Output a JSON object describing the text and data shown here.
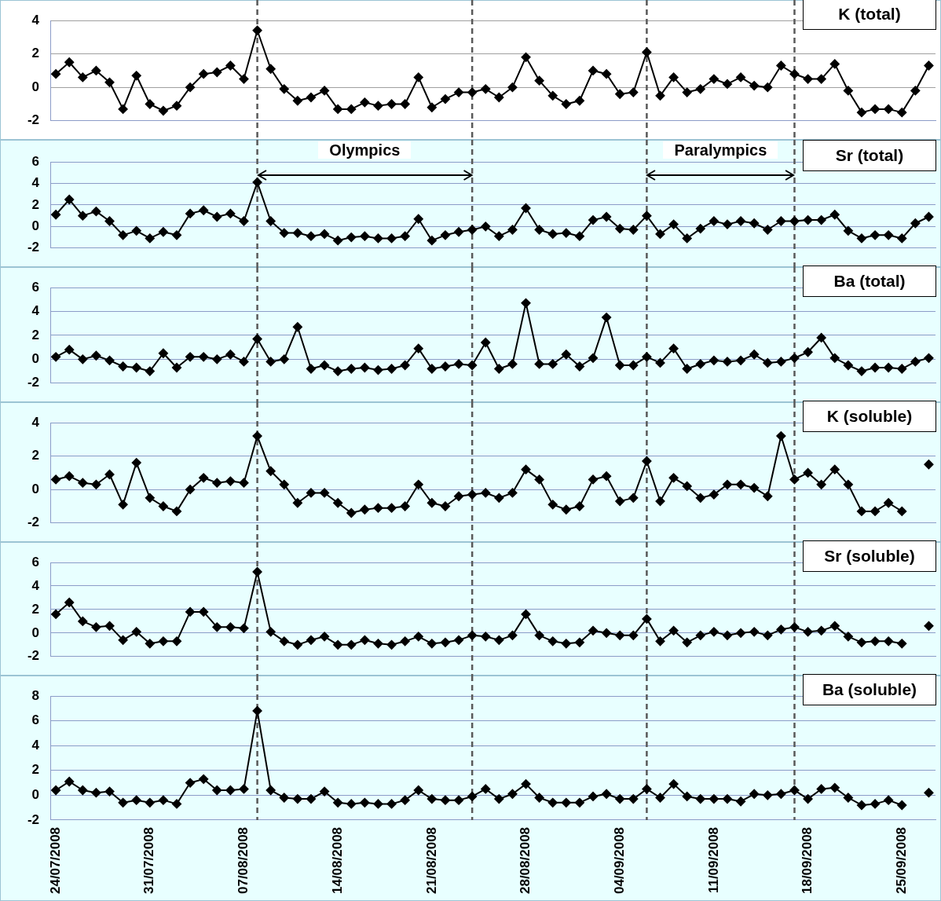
{
  "chart_data": [
    {
      "type": "line",
      "title": "K (total)",
      "grid": "y",
      "marker": "diamond",
      "line_style": "solid",
      "tick_labels": "y",
      "x": [
        "2008-07-24",
        "2008-07-25",
        "2008-07-26",
        "2008-07-27",
        "2008-07-28",
        "2008-07-29",
        "2008-07-30",
        "2008-07-31",
        "2008-08-01",
        "2008-08-02",
        "2008-08-03",
        "2008-08-04",
        "2008-08-05",
        "2008-08-06",
        "2008-08-07",
        "2008-08-08",
        "2008-08-09",
        "2008-08-10",
        "2008-08-11",
        "2008-08-12",
        "2008-08-13",
        "2008-08-14",
        "2008-08-15",
        "2008-08-16",
        "2008-08-17",
        "2008-08-18",
        "2008-08-19",
        "2008-08-20",
        "2008-08-21",
        "2008-08-22",
        "2008-08-23",
        "2008-08-24",
        "2008-08-25",
        "2008-08-26",
        "2008-08-27",
        "2008-08-28",
        "2008-08-29",
        "2008-08-30",
        "2008-08-31",
        "2008-09-01",
        "2008-09-02",
        "2008-09-03",
        "2008-09-04",
        "2008-09-05",
        "2008-09-06",
        "2008-09-07",
        "2008-09-08",
        "2008-09-09",
        "2008-09-10",
        "2008-09-11",
        "2008-09-12",
        "2008-09-13",
        "2008-09-14",
        "2008-09-15",
        "2008-09-16",
        "2008-09-17",
        "2008-09-18",
        "2008-09-19",
        "2008-09-20",
        "2008-09-21",
        "2008-09-22",
        "2008-09-23",
        "2008-09-24",
        "2008-09-25",
        "2008-09-26",
        "2008-09-27"
      ],
      "xlim": [
        "2008-07-23T14:00",
        "2008-09-27T12:00"
      ],
      "ylim": [
        -2,
        4
      ],
      "yticks": [
        -2,
        0,
        2,
        4
      ],
      "ref_lines": [
        {
          "axis": "x",
          "value": "2008-08-08",
          "color": "#595959",
          "line_style": "dashed"
        },
        {
          "axis": "x",
          "value": "2008-08-24",
          "color": "#595959",
          "line_style": "dashed"
        },
        {
          "axis": "x",
          "value": "2008-09-06",
          "color": "#595959",
          "line_style": "dashed"
        },
        {
          "axis": "x",
          "value": "2008-09-17",
          "color": "#595959",
          "line_style": "dashed"
        }
      ],
      "series": [
        {
          "color": "#000000",
          "values": [
            0.8,
            1.5,
            0.6,
            1.0,
            0.3,
            -1.3,
            0.7,
            -1.0,
            -1.4,
            -1.1,
            0.0,
            0.8,
            0.9,
            1.3,
            0.5,
            3.4,
            1.1,
            -0.1,
            -0.8,
            -0.6,
            -0.2,
            -1.3,
            -1.3,
            -0.9,
            -1.1,
            -1.0,
            -1.0,
            0.6,
            -1.2,
            -0.7,
            -0.3,
            -0.3,
            -0.1,
            -0.6,
            0.0,
            1.8,
            0.4,
            -0.5,
            -1.0,
            -0.8,
            1.0,
            0.8,
            -0.4,
            -0.3,
            2.1,
            -0.5,
            0.6,
            -0.3,
            -0.1,
            0.5,
            0.2,
            0.6,
            0.1,
            0.0,
            1.3,
            0.8,
            0.5,
            0.5,
            1.4,
            -0.2,
            -1.5,
            -1.3,
            -1.3,
            -1.5,
            -0.2,
            1.3
          ]
        }
      ]
    },
    {
      "type": "line",
      "title": "Sr (total)",
      "grid": "y",
      "marker": "diamond",
      "line_style": "solid",
      "tick_labels": "y",
      "x": [
        "2008-07-24",
        "2008-07-25",
        "2008-07-26",
        "2008-07-27",
        "2008-07-28",
        "2008-07-29",
        "2008-07-30",
        "2008-07-31",
        "2008-08-01",
        "2008-08-02",
        "2008-08-03",
        "2008-08-04",
        "2008-08-05",
        "2008-08-06",
        "2008-08-07",
        "2008-08-08",
        "2008-08-09",
        "2008-08-10",
        "2008-08-11",
        "2008-08-12",
        "2008-08-13",
        "2008-08-14",
        "2008-08-15",
        "2008-08-16",
        "2008-08-17",
        "2008-08-18",
        "2008-08-19",
        "2008-08-20",
        "2008-08-21",
        "2008-08-22",
        "2008-08-23",
        "2008-08-24",
        "2008-08-25",
        "2008-08-26",
        "2008-08-27",
        "2008-08-28",
        "2008-08-29",
        "2008-08-30",
        "2008-08-31",
        "2008-09-01",
        "2008-09-02",
        "2008-09-03",
        "2008-09-04",
        "2008-09-05",
        "2008-09-06",
        "2008-09-07",
        "2008-09-08",
        "2008-09-09",
        "2008-09-10",
        "2008-09-11",
        "2008-09-12",
        "2008-09-13",
        "2008-09-14",
        "2008-09-15",
        "2008-09-16",
        "2008-09-17",
        "2008-09-18",
        "2008-09-19",
        "2008-09-20",
        "2008-09-21",
        "2008-09-22",
        "2008-09-23",
        "2008-09-24",
        "2008-09-25",
        "2008-09-26",
        "2008-09-27"
      ],
      "xlim": [
        "2008-07-23T14:00",
        "2008-09-27T12:00"
      ],
      "ylim": [
        -2,
        6
      ],
      "yticks": [
        -2,
        0,
        2,
        4,
        6
      ],
      "ref_lines": [
        {
          "axis": "x",
          "value": "2008-08-08",
          "color": "#595959",
          "line_style": "dashed"
        },
        {
          "axis": "x",
          "value": "2008-08-24",
          "color": "#595959",
          "line_style": "dashed"
        },
        {
          "axis": "x",
          "value": "2008-09-06",
          "color": "#595959",
          "line_style": "dashed"
        },
        {
          "axis": "x",
          "value": "2008-09-17",
          "color": "#595959",
          "line_style": "dashed"
        }
      ],
      "annotations": [
        "Olympics",
        "Paralympics"
      ],
      "series": [
        {
          "color": "#000000",
          "values": [
            1.1,
            2.5,
            1.0,
            1.4,
            0.5,
            -0.8,
            -0.4,
            -1.1,
            -0.5,
            -0.8,
            1.2,
            1.5,
            0.9,
            1.2,
            0.5,
            4.1,
            0.5,
            -0.6,
            -0.6,
            -0.9,
            -0.7,
            -1.3,
            -1.0,
            -0.9,
            -1.1,
            -1.1,
            -0.9,
            0.7,
            -1.3,
            -0.8,
            -0.5,
            -0.3,
            0.0,
            -0.9,
            -0.3,
            1.7,
            -0.3,
            -0.7,
            -0.6,
            -0.9,
            0.6,
            0.9,
            -0.2,
            -0.3,
            1.0,
            -0.7,
            0.2,
            -1.1,
            -0.2,
            0.5,
            0.2,
            0.5,
            0.3,
            -0.3,
            0.5,
            0.5,
            0.6,
            0.6,
            1.1,
            -0.4,
            -1.1,
            -0.8,
            -0.8,
            -1.1,
            0.3,
            0.9
          ]
        }
      ]
    },
    {
      "type": "line",
      "title": "Ba (total)",
      "grid": "y",
      "marker": "diamond",
      "line_style": "solid",
      "tick_labels": "y",
      "x": [
        "2008-07-24",
        "2008-07-25",
        "2008-07-26",
        "2008-07-27",
        "2008-07-28",
        "2008-07-29",
        "2008-07-30",
        "2008-07-31",
        "2008-08-01",
        "2008-08-02",
        "2008-08-03",
        "2008-08-04",
        "2008-08-05",
        "2008-08-06",
        "2008-08-07",
        "2008-08-08",
        "2008-08-09",
        "2008-08-10",
        "2008-08-11",
        "2008-08-12",
        "2008-08-13",
        "2008-08-14",
        "2008-08-15",
        "2008-08-16",
        "2008-08-17",
        "2008-08-18",
        "2008-08-19",
        "2008-08-20",
        "2008-08-21",
        "2008-08-22",
        "2008-08-23",
        "2008-08-24",
        "2008-08-25",
        "2008-08-26",
        "2008-08-27",
        "2008-08-28",
        "2008-08-29",
        "2008-08-30",
        "2008-08-31",
        "2008-09-01",
        "2008-09-02",
        "2008-09-03",
        "2008-09-04",
        "2008-09-05",
        "2008-09-06",
        "2008-09-07",
        "2008-09-08",
        "2008-09-09",
        "2008-09-10",
        "2008-09-11",
        "2008-09-12",
        "2008-09-13",
        "2008-09-14",
        "2008-09-15",
        "2008-09-16",
        "2008-09-17",
        "2008-09-18",
        "2008-09-19",
        "2008-09-20",
        "2008-09-21",
        "2008-09-22",
        "2008-09-23",
        "2008-09-24",
        "2008-09-25",
        "2008-09-26",
        "2008-09-27"
      ],
      "xlim": [
        "2008-07-23T14:00",
        "2008-09-27T12:00"
      ],
      "ylim": [
        -2,
        6
      ],
      "yticks": [
        -2,
        0,
        2,
        4,
        6
      ],
      "ref_lines": [
        {
          "axis": "x",
          "value": "2008-08-08",
          "color": "#595959",
          "line_style": "dashed"
        },
        {
          "axis": "x",
          "value": "2008-08-24",
          "color": "#595959",
          "line_style": "dashed"
        },
        {
          "axis": "x",
          "value": "2008-09-06",
          "color": "#595959",
          "line_style": "dashed"
        },
        {
          "axis": "x",
          "value": "2008-09-17",
          "color": "#595959",
          "line_style": "dashed"
        }
      ],
      "series": [
        {
          "color": "#000000",
          "values": [
            0.2,
            0.8,
            0.0,
            0.3,
            -0.1,
            -0.6,
            -0.7,
            -1.0,
            0.5,
            -0.7,
            0.2,
            0.2,
            0.0,
            0.4,
            -0.2,
            1.7,
            -0.2,
            0.0,
            2.7,
            -0.8,
            -0.5,
            -1.0,
            -0.8,
            -0.7,
            -0.9,
            -0.8,
            -0.5,
            0.9,
            -0.8,
            -0.6,
            -0.4,
            -0.5,
            1.4,
            -0.8,
            -0.4,
            4.7,
            -0.4,
            -0.4,
            0.4,
            -0.6,
            0.1,
            3.5,
            -0.5,
            -0.5,
            0.2,
            -0.3,
            0.9,
            -0.8,
            -0.4,
            -0.1,
            -0.2,
            -0.1,
            0.4,
            -0.3,
            -0.2,
            0.1,
            0.6,
            1.8,
            0.1,
            -0.5,
            -1.0,
            -0.7,
            -0.7,
            -0.8,
            -0.2,
            0.1
          ]
        }
      ]
    },
    {
      "type": "line",
      "title": "K (soluble)",
      "grid": "y",
      "marker": "diamond",
      "line_style": "solid",
      "tick_labels": "y",
      "x": [
        "2008-07-24",
        "2008-07-25",
        "2008-07-26",
        "2008-07-27",
        "2008-07-28",
        "2008-07-29",
        "2008-07-30",
        "2008-07-31",
        "2008-08-01",
        "2008-08-02",
        "2008-08-03",
        "2008-08-04",
        "2008-08-05",
        "2008-08-06",
        "2008-08-07",
        "2008-08-08",
        "2008-08-09",
        "2008-08-10",
        "2008-08-11",
        "2008-08-12",
        "2008-08-13",
        "2008-08-14",
        "2008-08-15",
        "2008-08-16",
        "2008-08-17",
        "2008-08-18",
        "2008-08-19",
        "2008-08-20",
        "2008-08-21",
        "2008-08-22",
        "2008-08-23",
        "2008-08-24",
        "2008-08-25",
        "2008-08-26",
        "2008-08-27",
        "2008-08-28",
        "2008-08-29",
        "2008-08-30",
        "2008-08-31",
        "2008-09-01",
        "2008-09-02",
        "2008-09-03",
        "2008-09-04",
        "2008-09-05",
        "2008-09-06",
        "2008-09-07",
        "2008-09-08",
        "2008-09-09",
        "2008-09-10",
        "2008-09-11",
        "2008-09-12",
        "2008-09-13",
        "2008-09-14",
        "2008-09-15",
        "2008-09-16",
        "2008-09-17",
        "2008-09-18",
        "2008-09-19",
        "2008-09-20",
        "2008-09-21",
        "2008-09-22",
        "2008-09-23",
        "2008-09-24",
        "2008-09-25",
        "2008-09-26",
        "2008-09-27"
      ],
      "xlim": [
        "2008-07-23T14:00",
        "2008-09-27T12:00"
      ],
      "ylim": [
        -2,
        4
      ],
      "yticks": [
        -2,
        0,
        2,
        4
      ],
      "ref_lines": [
        {
          "axis": "x",
          "value": "2008-08-08",
          "color": "#595959",
          "line_style": "dashed"
        },
        {
          "axis": "x",
          "value": "2008-08-24",
          "color": "#595959",
          "line_style": "dashed"
        },
        {
          "axis": "x",
          "value": "2008-09-06",
          "color": "#595959",
          "line_style": "dashed"
        },
        {
          "axis": "x",
          "value": "2008-09-17",
          "color": "#595959",
          "line_style": "dashed"
        }
      ],
      "series": [
        {
          "color": "#000000",
          "values": [
            0.6,
            0.8,
            0.4,
            0.3,
            0.9,
            -0.9,
            1.6,
            -0.5,
            -1.0,
            -1.3,
            0.0,
            0.7,
            0.4,
            0.5,
            0.4,
            3.2,
            1.1,
            0.3,
            -0.8,
            -0.2,
            -0.2,
            -0.8,
            -1.4,
            -1.2,
            -1.1,
            -1.1,
            -1.0,
            0.3,
            -0.8,
            -1.0,
            -0.4,
            -0.3,
            -0.2,
            -0.5,
            -0.2,
            1.2,
            0.6,
            -0.9,
            -1.2,
            -1.0,
            0.6,
            0.8,
            -0.7,
            -0.5,
            1.7,
            -0.7,
            0.7,
            0.2,
            -0.5,
            -0.3,
            0.3,
            0.3,
            0.1,
            -0.4,
            3.2,
            0.6,
            1.0,
            0.3,
            1.2,
            0.3,
            -1.3,
            -1.3,
            -0.8,
            -1.3,
            null,
            1.5
          ]
        }
      ]
    },
    {
      "type": "line",
      "title": "Sr (soluble)",
      "grid": "y",
      "marker": "diamond",
      "line_style": "solid",
      "tick_labels": "y",
      "x": [
        "2008-07-24",
        "2008-07-25",
        "2008-07-26",
        "2008-07-27",
        "2008-07-28",
        "2008-07-29",
        "2008-07-30",
        "2008-07-31",
        "2008-08-01",
        "2008-08-02",
        "2008-08-03",
        "2008-08-04",
        "2008-08-05",
        "2008-08-06",
        "2008-08-07",
        "2008-08-08",
        "2008-08-09",
        "2008-08-10",
        "2008-08-11",
        "2008-08-12",
        "2008-08-13",
        "2008-08-14",
        "2008-08-15",
        "2008-08-16",
        "2008-08-17",
        "2008-08-18",
        "2008-08-19",
        "2008-08-20",
        "2008-08-21",
        "2008-08-22",
        "2008-08-23",
        "2008-08-24",
        "2008-08-25",
        "2008-08-26",
        "2008-08-27",
        "2008-08-28",
        "2008-08-29",
        "2008-08-30",
        "2008-08-31",
        "2008-09-01",
        "2008-09-02",
        "2008-09-03",
        "2008-09-04",
        "2008-09-05",
        "2008-09-06",
        "2008-09-07",
        "2008-09-08",
        "2008-09-09",
        "2008-09-10",
        "2008-09-11",
        "2008-09-12",
        "2008-09-13",
        "2008-09-14",
        "2008-09-15",
        "2008-09-16",
        "2008-09-17",
        "2008-09-18",
        "2008-09-19",
        "2008-09-20",
        "2008-09-21",
        "2008-09-22",
        "2008-09-23",
        "2008-09-24",
        "2008-09-25",
        "2008-09-26",
        "2008-09-27"
      ],
      "xlim": [
        "2008-07-23T14:00",
        "2008-09-27T12:00"
      ],
      "ylim": [
        -2,
        6
      ],
      "yticks": [
        -2,
        0,
        2,
        4,
        6
      ],
      "ref_lines": [
        {
          "axis": "x",
          "value": "2008-08-08",
          "color": "#595959",
          "line_style": "dashed"
        },
        {
          "axis": "x",
          "value": "2008-08-24",
          "color": "#595959",
          "line_style": "dashed"
        },
        {
          "axis": "x",
          "value": "2008-09-06",
          "color": "#595959",
          "line_style": "dashed"
        },
        {
          "axis": "x",
          "value": "2008-09-17",
          "color": "#595959",
          "line_style": "dashed"
        }
      ],
      "series": [
        {
          "color": "#000000",
          "values": [
            1.6,
            2.6,
            1.0,
            0.5,
            0.6,
            -0.6,
            0.1,
            -0.9,
            -0.7,
            -0.7,
            1.8,
            1.8,
            0.5,
            0.5,
            0.4,
            5.2,
            0.1,
            -0.7,
            -1.0,
            -0.6,
            -0.3,
            -1.0,
            -1.0,
            -0.6,
            -0.9,
            -1.0,
            -0.7,
            -0.3,
            -0.9,
            -0.8,
            -0.6,
            -0.2,
            -0.3,
            -0.6,
            -0.2,
            1.6,
            -0.2,
            -0.7,
            -0.9,
            -0.8,
            0.2,
            0.0,
            -0.2,
            -0.2,
            1.2,
            -0.7,
            0.2,
            -0.8,
            -0.2,
            0.1,
            -0.2,
            0.0,
            0.1,
            -0.2,
            0.3,
            0.5,
            0.1,
            0.2,
            0.6,
            -0.3,
            -0.8,
            -0.7,
            -0.7,
            -0.9,
            null,
            0.6
          ]
        }
      ]
    },
    {
      "type": "line",
      "title": "Ba (soluble)",
      "grid": "y",
      "marker": "diamond",
      "line_style": "solid",
      "x": [
        "2008-07-24",
        "2008-07-25",
        "2008-07-26",
        "2008-07-27",
        "2008-07-28",
        "2008-07-29",
        "2008-07-30",
        "2008-07-31",
        "2008-08-01",
        "2008-08-02",
        "2008-08-03",
        "2008-08-04",
        "2008-08-05",
        "2008-08-06",
        "2008-08-07",
        "2008-08-08",
        "2008-08-09",
        "2008-08-10",
        "2008-08-11",
        "2008-08-12",
        "2008-08-13",
        "2008-08-14",
        "2008-08-15",
        "2008-08-16",
        "2008-08-17",
        "2008-08-18",
        "2008-08-19",
        "2008-08-20",
        "2008-08-21",
        "2008-08-22",
        "2008-08-23",
        "2008-08-24",
        "2008-08-25",
        "2008-08-26",
        "2008-08-27",
        "2008-08-28",
        "2008-08-29",
        "2008-08-30",
        "2008-08-31",
        "2008-09-01",
        "2008-09-02",
        "2008-09-03",
        "2008-09-04",
        "2008-09-05",
        "2008-09-06",
        "2008-09-07",
        "2008-09-08",
        "2008-09-09",
        "2008-09-10",
        "2008-09-11",
        "2008-09-12",
        "2008-09-13",
        "2008-09-14",
        "2008-09-15",
        "2008-09-16",
        "2008-09-17",
        "2008-09-18",
        "2008-09-19",
        "2008-09-20",
        "2008-09-21",
        "2008-09-22",
        "2008-09-23",
        "2008-09-24",
        "2008-09-25",
        "2008-09-26",
        "2008-09-27"
      ],
      "xlim": [
        "2008-07-23T14:00",
        "2008-09-27T12:00"
      ],
      "xticks": [
        {
          "value": "2008-07-24",
          "label": "24/07/2008"
        },
        {
          "value": "2008-07-31",
          "label": "31/07/2008"
        },
        {
          "value": "2008-08-07",
          "label": "07/08/2008"
        },
        {
          "value": "2008-08-14",
          "label": "14/08/2008"
        },
        {
          "value": "2008-08-21",
          "label": "21/08/2008"
        },
        {
          "value": "2008-08-28",
          "label": "28/08/2008"
        },
        {
          "value": "2008-09-04",
          "label": "04/09/2008"
        },
        {
          "value": "2008-09-11",
          "label": "11/09/2008"
        },
        {
          "value": "2008-09-18",
          "label": "18/09/2008"
        },
        {
          "value": "2008-09-25",
          "label": "25/09/2008"
        }
      ],
      "ylim": [
        -2,
        8
      ],
      "yticks": [
        -2,
        0,
        2,
        4,
        6,
        8
      ],
      "ref_lines": [
        {
          "axis": "x",
          "value": "2008-08-08",
          "color": "#595959",
          "line_style": "dashed"
        },
        {
          "axis": "x",
          "value": "2008-08-24",
          "color": "#595959",
          "line_style": "dashed"
        },
        {
          "axis": "x",
          "value": "2008-09-06",
          "color": "#595959",
          "line_style": "dashed"
        },
        {
          "axis": "x",
          "value": "2008-09-17",
          "color": "#595959",
          "line_style": "dashed"
        }
      ],
      "series": [
        {
          "color": "#000000",
          "values": [
            0.4,
            1.1,
            0.4,
            0.2,
            0.3,
            -0.6,
            -0.4,
            -0.6,
            -0.4,
            -0.7,
            1.0,
            1.3,
            0.4,
            0.4,
            0.5,
            6.8,
            0.4,
            -0.2,
            -0.3,
            -0.3,
            0.3,
            -0.6,
            -0.7,
            -0.6,
            -0.7,
            -0.7,
            -0.4,
            0.4,
            -0.3,
            -0.4,
            -0.4,
            -0.1,
            0.5,
            -0.3,
            0.1,
            0.9,
            -0.2,
            -0.6,
            -0.6,
            -0.6,
            -0.1,
            0.1,
            -0.3,
            -0.3,
            0.5,
            -0.2,
            0.9,
            -0.1,
            -0.3,
            -0.3,
            -0.3,
            -0.5,
            0.1,
            0.0,
            0.1,
            0.4,
            -0.3,
            0.5,
            0.6,
            -0.2,
            -0.8,
            -0.7,
            -0.4,
            -0.8,
            null,
            0.2
          ]
        }
      ]
    }
  ]
}
